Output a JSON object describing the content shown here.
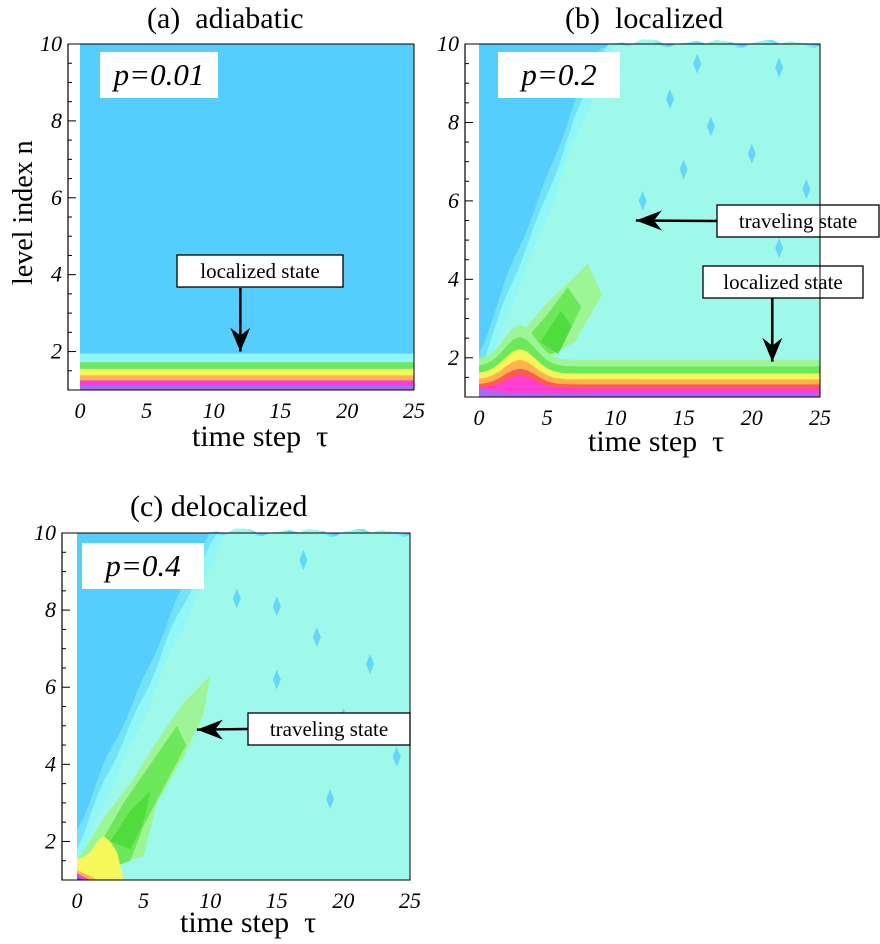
{
  "colors": {
    "background_level": "#55cdfd",
    "cyan_low": "#72e3f7",
    "cyan_high": "#8ff7f5",
    "aqua": "#9ff9ea",
    "green_light": "#9ef596",
    "green": "#6de85b",
    "green_dark": "#4fdc3c",
    "yellow": "#f5f75a",
    "orange": "#ffb34e",
    "red": "#ff5a55",
    "magenta": "#ff3fd4",
    "violet": "#a06cff",
    "blue": "#3f6cff"
  },
  "chart_data": [
    {
      "type": "heatmap",
      "panel_title": "(a)  adiabatic",
      "annotation_p": "p=0.01",
      "xlabel": "time step  τ",
      "ylabel": "level index n",
      "xlim": [
        0,
        25
      ],
      "ylim": [
        1,
        10
      ],
      "x_ticks": [
        "0",
        "5",
        "10",
        "15",
        "20",
        "25"
      ],
      "y_ticks": [
        "2",
        "4",
        "6",
        "8",
        "10"
      ],
      "annotations": [
        {
          "text": "localized state",
          "arrow_target": {
            "x": 12,
            "y": 2
          }
        }
      ],
      "bands": [
        {
          "y_from": 1.0,
          "y_to": 1.1,
          "color": "violet"
        },
        {
          "y_from": 1.1,
          "y_to": 1.25,
          "color": "magenta"
        },
        {
          "y_from": 1.25,
          "y_to": 1.38,
          "color": "orange"
        },
        {
          "y_from": 1.38,
          "y_to": 1.55,
          "color": "yellow"
        },
        {
          "y_from": 1.55,
          "y_to": 1.72,
          "color": "green"
        },
        {
          "y_from": 1.72,
          "y_to": 1.95,
          "color": "cyan_high"
        }
      ]
    },
    {
      "type": "heatmap",
      "panel_title": "(b)  localized",
      "annotation_p": "p=0.2",
      "xlabel": "time step  τ",
      "xlim": [
        0,
        25
      ],
      "ylim": [
        1,
        10
      ],
      "x_ticks": [
        "0",
        "5",
        "10",
        "15",
        "20",
        "25"
      ],
      "y_ticks": [
        "2",
        "4",
        "6",
        "8",
        "10"
      ],
      "front_slope_levels_per_step": 0.9,
      "annotations": [
        {
          "text": "traveling state",
          "arrow_target": {
            "x": 11.5,
            "y": 5.5
          }
        },
        {
          "text": "localized state",
          "arrow_target": {
            "x": 21.5,
            "y": 1.9
          }
        }
      ]
    },
    {
      "type": "heatmap",
      "panel_title": "(c) delocalized",
      "annotation_p": "p=0.4",
      "xlabel": "time step  τ",
      "xlim": [
        0,
        25
      ],
      "ylim": [
        1,
        10
      ],
      "x_ticks": [
        "0",
        "5",
        "10",
        "15",
        "20",
        "25"
      ],
      "y_ticks": [
        "2",
        "4",
        "6",
        "8",
        "10"
      ],
      "front_slope_levels_per_step": 0.78,
      "annotations": [
        {
          "text": "traveling state",
          "arrow_target": {
            "x": 9,
            "y": 4.9
          }
        }
      ]
    }
  ]
}
